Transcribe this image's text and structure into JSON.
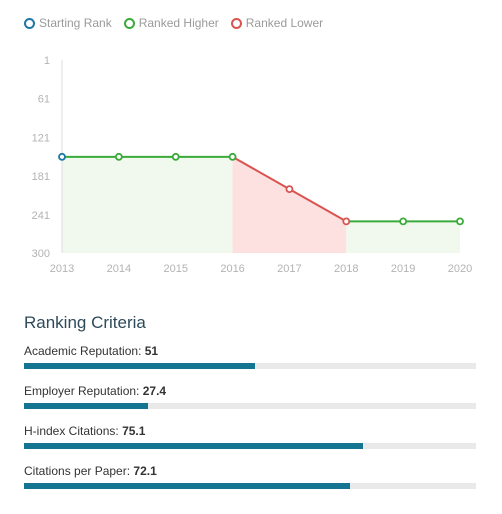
{
  "legend": [
    {
      "label": "Starting Rank",
      "color": "#1f77a8"
    },
    {
      "label": "Ranked Higher",
      "color": "#3aab3a"
    },
    {
      "label": "Ranked Lower",
      "color": "#d9534f"
    }
  ],
  "chart_data": {
    "type": "line",
    "x": [
      2013,
      2014,
      2015,
      2016,
      2017,
      2018,
      2019,
      2020
    ],
    "ranks": [
      151,
      151,
      151,
      151,
      201,
      251,
      251,
      251
    ],
    "y_ticks": [
      1,
      61,
      121,
      181,
      241,
      300
    ],
    "ylim": [
      1,
      300
    ],
    "y_inverted": true,
    "legend_position": "top",
    "colors": {
      "start": "#1f77a8",
      "higher": "#3aab3a",
      "lower": "#d9534f",
      "higher_fill": "#f1f9ee",
      "lower_fill": "#fde0e0"
    }
  },
  "criteria": {
    "title": "Ranking Criteria",
    "items": [
      {
        "label": "Academic Reputation:",
        "value": "51",
        "score": 51
      },
      {
        "label": "Employer Reputation:",
        "value": "27.4",
        "score": 27.4
      },
      {
        "label": "H-index Citations:",
        "value": "75.1",
        "score": 75.1
      },
      {
        "label": "Citations per Paper:",
        "value": "72.1",
        "score": 72.1
      }
    ],
    "max_score": 100
  }
}
